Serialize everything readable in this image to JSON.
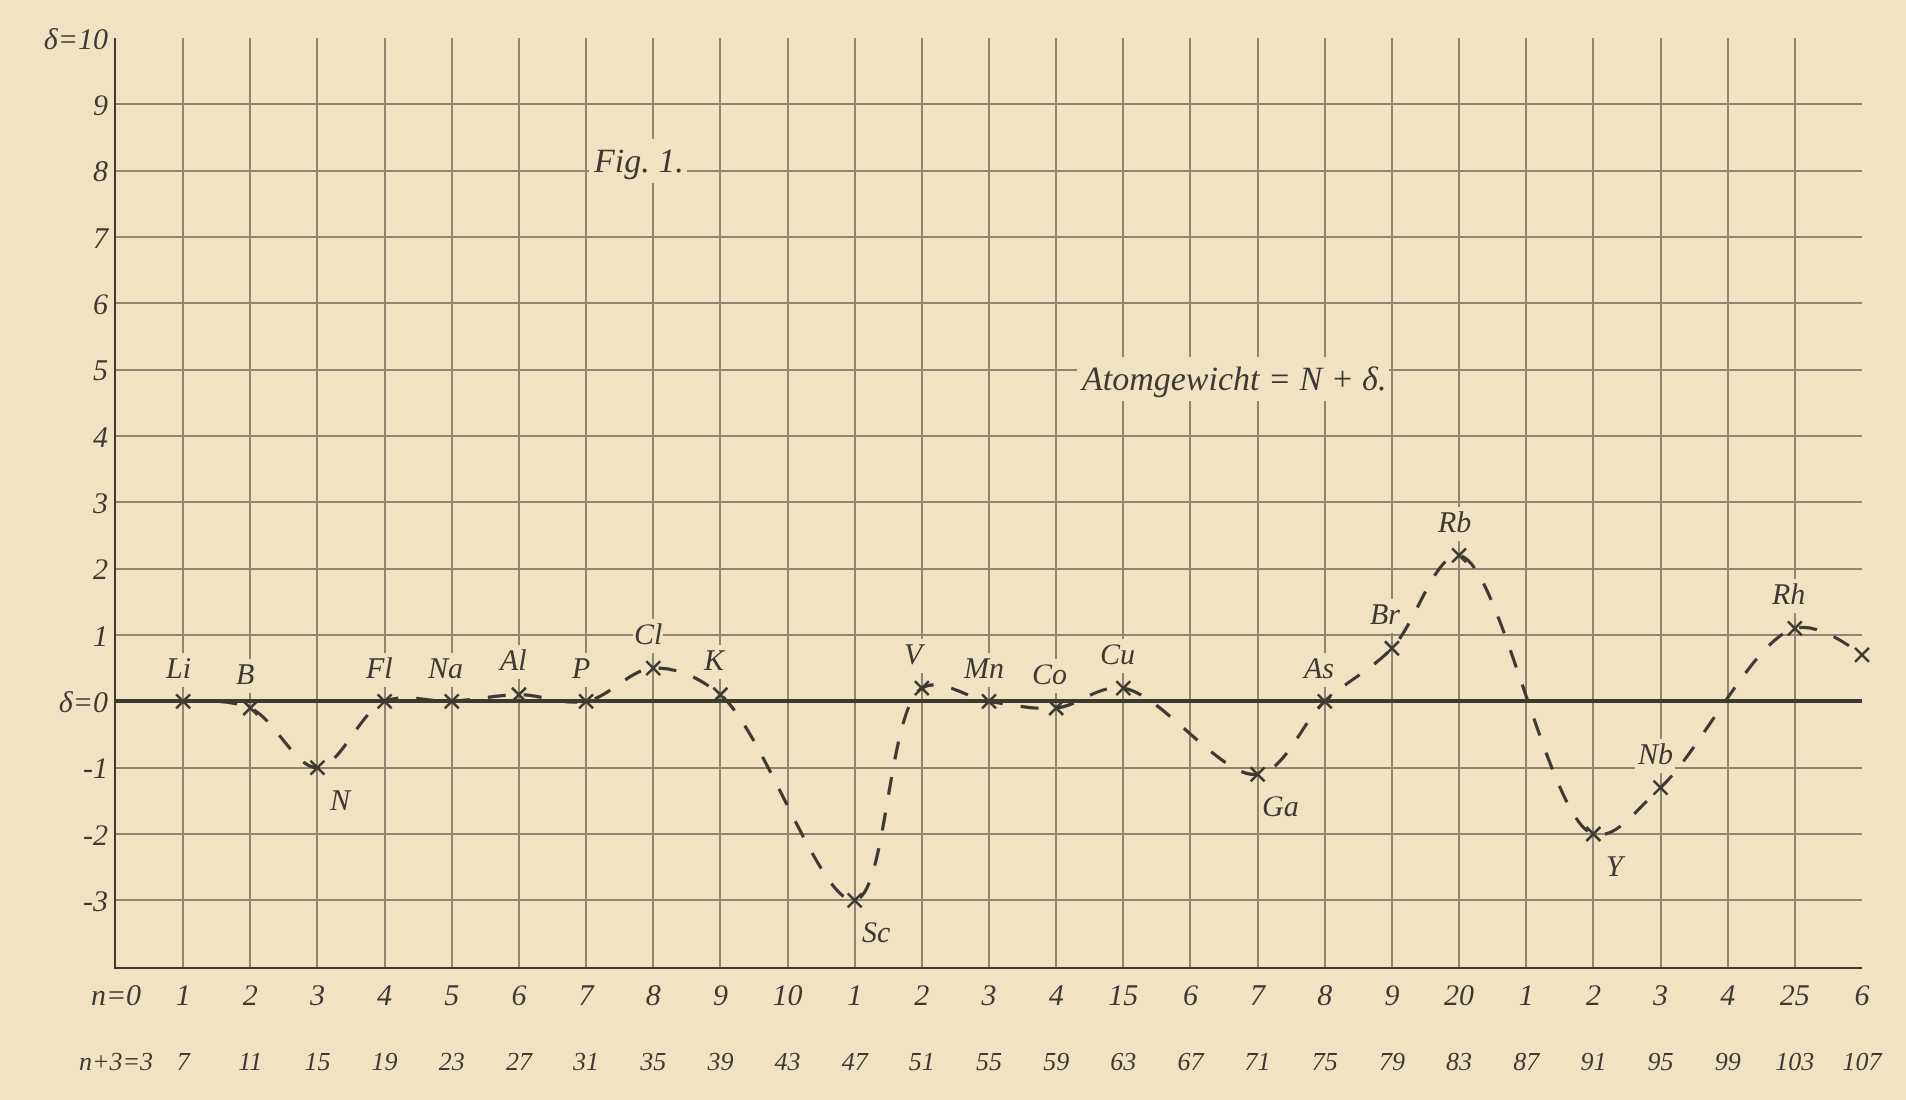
{
  "chart_data": {
    "type": "line",
    "categories": [
      "n=0",
      "1",
      "2",
      "3",
      "4",
      "5",
      "6",
      "7",
      "8",
      "9",
      "10",
      "1",
      "2",
      "3",
      "4",
      "15",
      "6",
      "7",
      "8",
      "9",
      "20",
      "1",
      "2",
      "3",
      "4",
      "25",
      "6"
    ],
    "series": [
      {
        "color": "#3c3a33",
        "values": [
          null,
          0,
          -0.1,
          -1.0,
          0,
          0,
          0.1,
          0,
          0.5,
          0.1,
          null,
          -3.0,
          0.2,
          0,
          -0.1,
          0.2,
          null,
          -1.1,
          0,
          0.8,
          2.2,
          null,
          -2.0,
          -1.3,
          null,
          1.1,
          0.7
        ],
        "value_labels": [
          null,
          "Li",
          "B",
          "N",
          "Fl",
          "Na",
          "Al",
          "P",
          "Cl",
          "K",
          null,
          "Sc",
          "V",
          "Mn",
          "Co",
          "Cu",
          null,
          "Ga",
          "As",
          "Br",
          "Rb",
          null,
          "Y",
          "Nb",
          null,
          "Rh",
          null
        ]
      }
    ],
    "marker": "cross",
    "line_style": "dashed",
    "grid": true,
    "ylim": [
      -4,
      10
    ],
    "x2lim": [
      3,
      107
    ],
    "x2ticks": [
      {
        "value": 3,
        "label": "n+3=3"
      },
      7,
      11,
      15,
      19,
      23,
      27,
      31,
      35,
      39,
      43,
      47,
      51,
      55,
      59,
      63,
      67,
      71,
      75,
      79,
      83,
      87,
      91,
      95,
      99,
      103,
      107
    ],
    "yticks": [
      {
        "value": -4,
        "label": null
      },
      -3,
      -2,
      -1,
      {
        "value": 0,
        "label": "δ=0"
      },
      1,
      2,
      3,
      4,
      5,
      6,
      7,
      8,
      9,
      {
        "value": 10,
        "label": "δ=10"
      }
    ],
    "annotations": [
      "Fig. 1.",
      "Atomgewicht = N + δ."
    ]
  }
}
